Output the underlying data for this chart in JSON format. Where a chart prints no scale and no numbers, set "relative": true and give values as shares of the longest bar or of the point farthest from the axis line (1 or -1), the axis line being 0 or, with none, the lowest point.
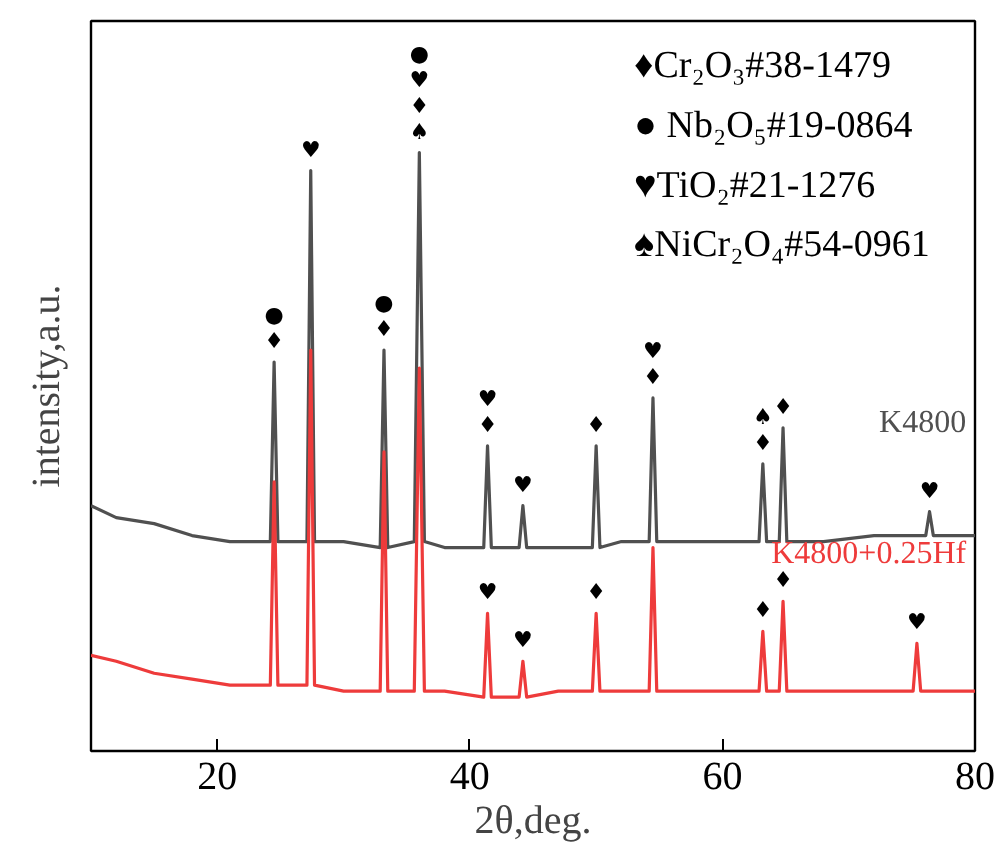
{
  "chart_data": {
    "type": "line",
    "relative": true,
    "xlabel": "2θ,deg.",
    "ylabel": "intensity,a.u.",
    "xlim": [
      10,
      80
    ],
    "xticks": [
      20,
      40,
      60,
      80
    ],
    "grid": false,
    "line_style": "solid",
    "marker": "none",
    "series": [
      {
        "name": "K4800",
        "color": "#505050",
        "x": [
          10,
          12,
          15,
          18,
          21,
          24.2,
          24.5,
          24.8,
          27.1,
          27.4,
          27.7,
          30,
          32.9,
          33.2,
          33.5,
          35.6,
          36.0,
          36.4,
          38,
          41.1,
          41.4,
          41.7,
          43.9,
          44.2,
          44.5,
          47,
          49.7,
          50.0,
          50.3,
          52,
          54.2,
          54.5,
          54.8,
          57,
          60,
          62.9,
          63.2,
          63.5,
          64.5,
          64.8,
          65.1,
          68,
          72,
          76.1,
          76.4,
          76.7,
          78,
          80
        ],
        "values": [
          0.41,
          0.39,
          0.38,
          0.36,
          0.35,
          0.35,
          0.65,
          0.35,
          0.35,
          0.97,
          0.35,
          0.35,
          0.34,
          0.67,
          0.34,
          0.35,
          1.0,
          0.35,
          0.34,
          0.34,
          0.51,
          0.34,
          0.34,
          0.41,
          0.34,
          0.34,
          0.34,
          0.51,
          0.34,
          0.35,
          0.35,
          0.59,
          0.35,
          0.35,
          0.35,
          0.35,
          0.48,
          0.35,
          0.35,
          0.54,
          0.35,
          0.35,
          0.36,
          0.36,
          0.4,
          0.36,
          0.36,
          0.36
        ]
      },
      {
        "name": "K4800+0.25Hf",
        "color": "#ee3b3b",
        "x": [
          10,
          12,
          15,
          18,
          21,
          24.2,
          24.5,
          24.8,
          27.1,
          27.4,
          27.7,
          30,
          32.9,
          33.2,
          33.5,
          35.6,
          36.0,
          36.4,
          38,
          41.1,
          41.4,
          41.7,
          43.9,
          44.2,
          44.5,
          47,
          49.7,
          50.0,
          50.3,
          52,
          54.2,
          54.5,
          54.8,
          57,
          60,
          62.9,
          63.2,
          63.5,
          64.5,
          64.8,
          65.1,
          68,
          72,
          75.1,
          75.4,
          75.7,
          78,
          80
        ],
        "values": [
          0.16,
          0.15,
          0.13,
          0.12,
          0.11,
          0.11,
          0.45,
          0.11,
          0.11,
          0.67,
          0.11,
          0.1,
          0.1,
          0.5,
          0.1,
          0.1,
          0.64,
          0.1,
          0.1,
          0.09,
          0.23,
          0.09,
          0.09,
          0.15,
          0.09,
          0.1,
          0.1,
          0.23,
          0.1,
          0.1,
          0.1,
          0.34,
          0.1,
          0.1,
          0.1,
          0.1,
          0.2,
          0.1,
          0.1,
          0.25,
          0.1,
          0.1,
          0.1,
          0.1,
          0.18,
          0.1,
          0.1,
          0.1
        ]
      }
    ],
    "annotations": [
      "♦Cr₂O₃#38-1479",
      "● Nb₂O₅#19-0864",
      "♥TiO₂#21-1276",
      "♠NiCr₂O₄#54-0961",
      {
        "text": "●\n♦",
        "x": 24.5,
        "y": 0.65
      },
      {
        "text": "♥",
        "x": 27.4,
        "y": 0.97
      },
      {
        "text": "●\n♦",
        "x": 33.2,
        "y": 0.67
      },
      {
        "text": "●\n♥\n♦\n♠",
        "x": 36.0,
        "y": 1.0
      },
      {
        "text": "♥\n♦",
        "x": 41.4,
        "y": 0.51
      },
      {
        "text": "♥",
        "x": 44.2,
        "y": 0.41
      },
      {
        "text": "♦",
        "x": 50.0,
        "y": 0.51
      },
      {
        "text": "♥\n♦",
        "x": 54.5,
        "y": 0.59
      },
      {
        "text": "♠\n♦",
        "x": 63.2,
        "y": 0.48
      },
      {
        "text": "♦",
        "x": 64.8,
        "y": 0.54
      },
      {
        "text": "♥",
        "x": 76.4,
        "y": 0.4
      },
      {
        "text": "♥",
        "x": 41.4,
        "y": 0.23
      },
      {
        "text": "♥",
        "x": 44.2,
        "y": 0.15
      },
      {
        "text": "♦",
        "x": 50.0,
        "y": 0.23
      },
      {
        "text": "♦",
        "x": 63.2,
        "y": 0.2
      },
      {
        "text": "♦",
        "x": 64.8,
        "y": 0.25
      },
      {
        "text": "♥",
        "x": 75.4,
        "y": 0.18
      }
    ]
  }
}
